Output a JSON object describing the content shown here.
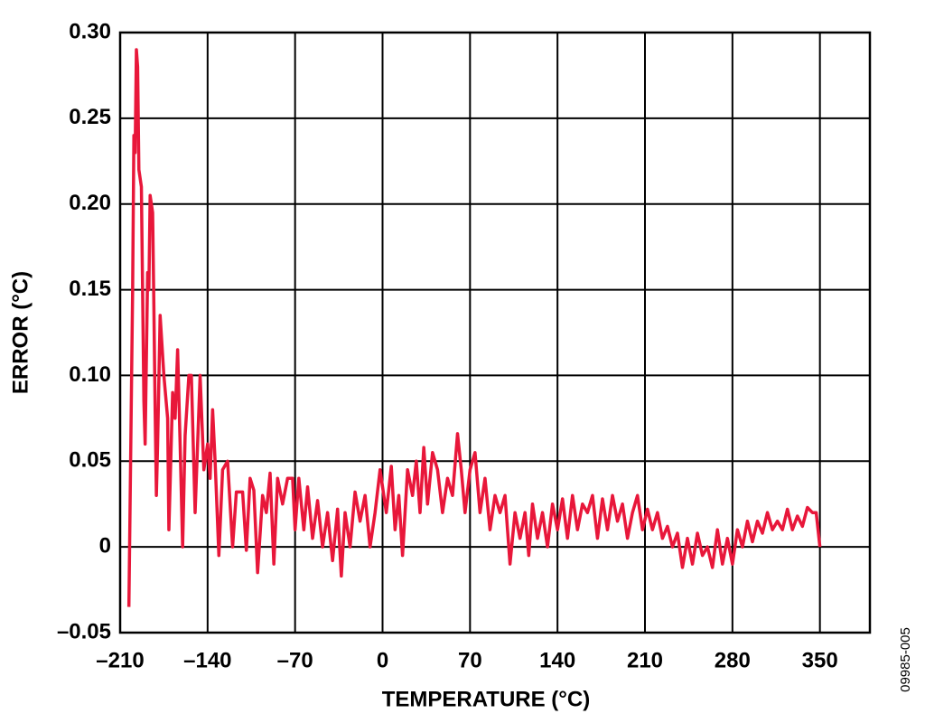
{
  "chart_data": {
    "type": "line",
    "x_label": "TEMPERATURE (°C)",
    "y_label": "ERROR (°C)",
    "figure_id": "09985-005",
    "xlim": [
      -210,
      390
    ],
    "ylim": [
      -0.05,
      0.3
    ],
    "xticks": [
      {
        "value": -210,
        "label": "–210"
      },
      {
        "value": -140,
        "label": "–140"
      },
      {
        "value": -70,
        "label": "–70"
      },
      0,
      70,
      140,
      210,
      280,
      350
    ],
    "yticks": [
      {
        "value": -0.05,
        "label": "–0.05"
      },
      0,
      0.05,
      {
        "value": 0.1,
        "label": "0.10"
      },
      0.15,
      {
        "value": 0.2,
        "label": "0.20"
      },
      0.25,
      {
        "value": 0.3,
        "label": "0.30"
      }
    ],
    "grid": true,
    "series": [
      {
        "color": "#e8173a",
        "x": [
          -203,
          -200,
          -199,
          -198,
          -197,
          -196,
          -195,
          -193,
          -191,
          -190,
          -188,
          -187,
          -186,
          -184,
          -183,
          -182,
          -181,
          -180,
          -178,
          -175,
          -172,
          -171,
          -168,
          -166,
          -164,
          -162,
          -160,
          -158,
          -155,
          -153,
          -150,
          -148,
          -146,
          -143,
          -140,
          -138,
          -136,
          -134,
          -131,
          -128,
          -124,
          -120,
          -117,
          -112,
          -109,
          -106,
          -103,
          -100,
          -96,
          -93,
          -90,
          -87,
          -84,
          -80,
          -76,
          -72,
          -70,
          -67,
          -63,
          -60,
          -56,
          -52,
          -48,
          -44,
          -40,
          -36,
          -33,
          -30,
          -26,
          -22,
          -18,
          -14,
          -10,
          -6,
          -2,
          3,
          7,
          10,
          13,
          16,
          20,
          24,
          27,
          30,
          33,
          36,
          40,
          44,
          48,
          52,
          56,
          60,
          63,
          66,
          70,
          74,
          78,
          82,
          86,
          90,
          94,
          98,
          102,
          106,
          110,
          114,
          117,
          120,
          124,
          128,
          132,
          136,
          140,
          144,
          148,
          152,
          156,
          160,
          164,
          168,
          172,
          176,
          180,
          184,
          188,
          192,
          196,
          200,
          204,
          208,
          212,
          216,
          220,
          224,
          228,
          232,
          236,
          240,
          244,
          248,
          252,
          256,
          260,
          264,
          268,
          272,
          276,
          280,
          284,
          288,
          292,
          296,
          300,
          304,
          308,
          312,
          316,
          320,
          324,
          328,
          332,
          336,
          340,
          344,
          347,
          350
        ],
        "values": [
          -0.035,
          0.15,
          0.24,
          0.23,
          0.29,
          0.28,
          0.22,
          0.21,
          0.085,
          0.06,
          0.16,
          0.15,
          0.205,
          0.195,
          0.14,
          0.08,
          0.03,
          0.06,
          0.135,
          0.1,
          0.075,
          0.01,
          0.09,
          0.075,
          0.115,
          0.06,
          0.0,
          0.065,
          0.1,
          0.1,
          0.02,
          0.06,
          0.1,
          0.045,
          0.06,
          0.04,
          0.08,
          0.05,
          -0.005,
          0.045,
          0.05,
          0.0,
          0.032,
          0.032,
          -0.002,
          0.04,
          0.033,
          -0.015,
          0.03,
          0.02,
          0.043,
          -0.01,
          0.04,
          0.025,
          0.04,
          0.04,
          0.01,
          0.04,
          0.01,
          0.035,
          0.005,
          0.027,
          0.0,
          0.02,
          -0.008,
          0.022,
          -0.017,
          0.02,
          0.0,
          0.032,
          0.015,
          0.03,
          0.0,
          0.02,
          0.045,
          0.02,
          0.047,
          0.01,
          0.03,
          -0.005,
          0.045,
          0.03,
          0.05,
          0.02,
          0.058,
          0.025,
          0.055,
          0.045,
          0.02,
          0.04,
          0.03,
          0.066,
          0.045,
          0.02,
          0.045,
          0.055,
          0.02,
          0.04,
          0.01,
          0.03,
          0.02,
          0.03,
          -0.01,
          0.02,
          0.005,
          0.02,
          -0.005,
          0.025,
          0.005,
          0.02,
          0.0,
          0.025,
          0.01,
          0.028,
          0.005,
          0.03,
          0.01,
          0.025,
          0.02,
          0.03,
          0.005,
          0.028,
          0.01,
          0.03,
          0.015,
          0.025,
          0.005,
          0.02,
          0.03,
          0.01,
          0.022,
          0.01,
          0.02,
          0.005,
          0.012,
          0.0,
          0.008,
          -0.012,
          0.005,
          -0.01,
          0.008,
          -0.005,
          0.0,
          -0.012,
          0.01,
          -0.01,
          0.005,
          -0.01,
          0.01,
          0.0,
          0.015,
          0.003,
          0.015,
          0.008,
          0.02,
          0.01,
          0.015,
          0.01,
          0.022,
          0.01,
          0.018,
          0.012,
          0.023,
          0.02,
          0.02,
          0.0
        ]
      }
    ]
  }
}
